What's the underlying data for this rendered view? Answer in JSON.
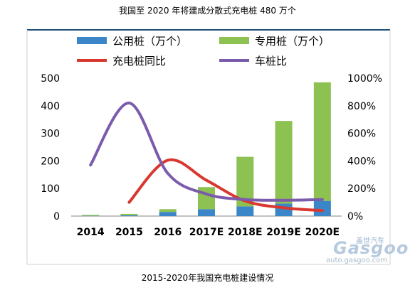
{
  "title": "我国至 2020 年将建成分散式充电桩 480 万个",
  "caption": "2015-2020年我国充电桩建设情况",
  "watermark": {
    "cn": "盖世汽车",
    "logo": "Gasgoo",
    "url": "auto.gasgoo.com"
  },
  "chart_data": {
    "type": "bar",
    "categories": [
      "2014",
      "2015",
      "2016",
      "2017E",
      "2018E",
      "2019E",
      "2020E"
    ],
    "series": [
      {
        "name": "公用桩（万个）",
        "kind": "bar",
        "axis": "left",
        "color": "#3a86c8",
        "values": [
          1,
          3,
          15,
          25,
          35,
          45,
          55
        ]
      },
      {
        "name": "专用桩（万个）",
        "kind": "bar",
        "axis": "left",
        "color": "#8dc152",
        "values": [
          3,
          5,
          10,
          80,
          180,
          300,
          430
        ]
      },
      {
        "name": "充电桩同比",
        "kind": "line",
        "axis": "right",
        "color": "#d8382f",
        "values": [
          null,
          100,
          405,
          260,
          110,
          60,
          40
        ]
      },
      {
        "name": "车桩比",
        "kind": "line",
        "axis": "right",
        "color": "#7b5bab",
        "values": [
          370,
          820,
          310,
          160,
          120,
          115,
          120
        ]
      }
    ],
    "y_left": {
      "min": 0,
      "max": 500,
      "ticks": [
        "0",
        "100",
        "200",
        "300",
        "400",
        "500"
      ]
    },
    "y_right": {
      "min": 0,
      "max": 1000,
      "ticks": [
        "0%",
        "200%",
        "400%",
        "600%",
        "800%",
        "1000%"
      ]
    },
    "stacked": true,
    "legend_position": "top",
    "grid": false
  }
}
